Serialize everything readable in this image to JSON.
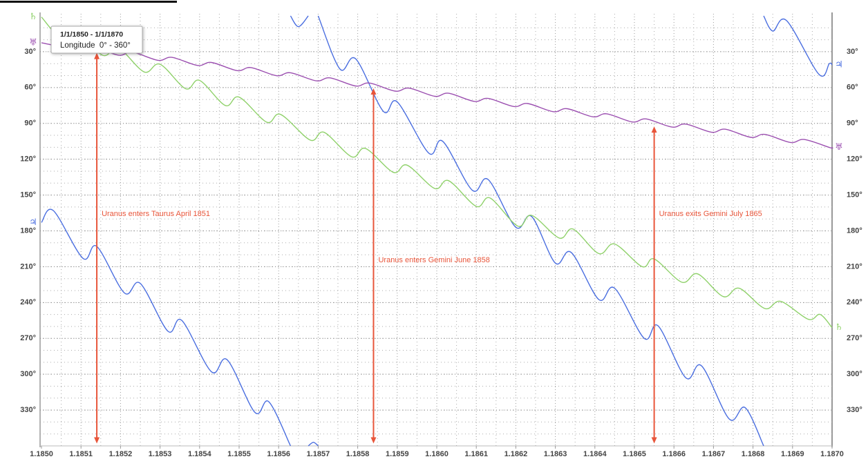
{
  "chart_data": {
    "type": "line",
    "title": "1/1/1850 - 1/1/1870",
    "subtitle": "Longitude  0° - 360°",
    "xlim": [
      1850,
      1870
    ],
    "xticks": [
      {
        "value": 1850,
        "label": "1.1850"
      },
      {
        "value": 1851,
        "label": "1.1851"
      },
      {
        "value": 1852,
        "label": "1.1852"
      },
      {
        "value": 1853,
        "label": "1.1853"
      },
      {
        "value": 1854,
        "label": "1.1854"
      },
      {
        "value": 1855,
        "label": "1.1855"
      },
      {
        "value": 1856,
        "label": "1.1856"
      },
      {
        "value": 1857,
        "label": "1.1857"
      },
      {
        "value": 1858,
        "label": "1.1858"
      },
      {
        "value": 1859,
        "label": "1.1859"
      },
      {
        "value": 1860,
        "label": "1.1860"
      },
      {
        "value": 1861,
        "label": "1.1861"
      },
      {
        "value": 1862,
        "label": "1.1862"
      },
      {
        "value": 1863,
        "label": "1.1863"
      },
      {
        "value": 1864,
        "label": "1.1864"
      },
      {
        "value": 1865,
        "label": "1.1865"
      },
      {
        "value": 1866,
        "label": "1.1866"
      },
      {
        "value": 1867,
        "label": "1.1867"
      },
      {
        "value": 1868,
        "label": "1.1868"
      },
      {
        "value": 1869,
        "label": "1.1869"
      },
      {
        "value": 1870,
        "label": "1.1870"
      }
    ],
    "ylim": [
      0,
      360
    ],
    "y_inverted": true,
    "yticks": [
      {
        "value": 30,
        "label": "30°"
      },
      {
        "value": 60,
        "label": "60°"
      },
      {
        "value": 90,
        "label": "90°"
      },
      {
        "value": 120,
        "label": "120°"
      },
      {
        "value": 150,
        "label": "150°"
      },
      {
        "value": 180,
        "label": "180°"
      },
      {
        "value": 210,
        "label": "210°"
      },
      {
        "value": 240,
        "label": "240°"
      },
      {
        "value": 270,
        "label": "270°"
      },
      {
        "value": 300,
        "label": "300°"
      },
      {
        "value": 330,
        "label": "330°"
      }
    ],
    "grid": true,
    "series": [
      {
        "symbol": "♃",
        "color": "#4a6ee0",
        "x": [
          1850.0,
          1850.3,
          1851.05,
          1851.4,
          1852.1,
          1852.5,
          1853.2,
          1853.55,
          1854.3,
          1854.7,
          1855.4,
          1855.75,
          1856.3,
          null,
          1856.3,
          1856.5,
          1856.75,
          null,
          1856.75,
          1856.88,
          1857.0,
          null,
          1857.0,
          1857.55,
          1857.95,
          1858.65,
          1859.0,
          1859.8,
          1860.15,
          1860.9,
          1861.3,
          1862.0,
          1862.4,
          1863.0,
          1863.4,
          1864.1,
          1864.5,
          1865.25,
          1865.6,
          1866.3,
          1866.7,
          1867.4,
          1867.8,
          1868.27,
          null,
          1868.27,
          1868.5,
          1868.85,
          1869.67,
          1869.93,
          1870.0
        ],
        "values": [
          173,
          163,
          203,
          193,
          232,
          224,
          264,
          255,
          298,
          288,
          332,
          323,
          360,
          null,
          0,
          9,
          0,
          null,
          360,
          357,
          360,
          null,
          0,
          44.5,
          36,
          80,
          72,
          115,
          105,
          146,
          137,
          177,
          168,
          207,
          198,
          237.5,
          228,
          270,
          259.5,
          303,
          293,
          337.5,
          328,
          360,
          null,
          0,
          12.7,
          4,
          49,
          40,
          41
        ]
      },
      {
        "symbol": "♄",
        "color": "#8fd16a",
        "x": [
          1850.0,
          1850.5,
          1850.9,
          1851.55,
          1851.95,
          1852.6,
          1853.0,
          1853.65,
          1854.0,
          1854.65,
          1855.0,
          1855.7,
          1856.05,
          1856.8,
          1857.15,
          1857.85,
          1858.2,
          1858.9,
          1859.25,
          1859.95,
          1860.3,
          1861.0,
          1861.35,
          1862.05,
          1862.4,
          1863.1,
          1863.45,
          1864.1,
          1864.5,
          1865.2,
          1865.5,
          1866.2,
          1866.6,
          1867.25,
          1867.65,
          1868.3,
          1868.7,
          1869.4,
          1869.7,
          1870.0
        ],
        "values": [
          1,
          19,
          14,
          33,
          27,
          47,
          40.5,
          61,
          54,
          75,
          68,
          89,
          82.5,
          104,
          97.5,
          118,
          111,
          131,
          125,
          144.5,
          138,
          159.5,
          152.5,
          176,
          167,
          186,
          178.5,
          199,
          191,
          210,
          203.5,
          223,
          216,
          235,
          228,
          245,
          239,
          254,
          250,
          261
        ]
      },
      {
        "symbol": "♅",
        "color": "#9b4fb0",
        "x": [
          1850.0,
          1850.95,
          1851.3,
          1851.95,
          1852.3,
          1852.95,
          1853.3,
          1853.95,
          1854.3,
          1854.95,
          1855.3,
          1855.95,
          1856.3,
          1856.95,
          1857.3,
          1857.95,
          1858.3,
          1858.95,
          1859.3,
          1859.95,
          1860.3,
          1860.95,
          1861.3,
          1861.95,
          1862.3,
          1862.95,
          1863.3,
          1863.95,
          1864.3,
          1864.95,
          1865.3,
          1865.95,
          1866.3,
          1866.95,
          1867.3,
          1867.95,
          1868.3,
          1868.95,
          1869.3,
          1869.95,
          1870.0
        ],
        "values": [
          22.5,
          28.6,
          26.1,
          32.9,
          30.4,
          37.2,
          34.7,
          41.5,
          39.0,
          45.8,
          43.3,
          50.1,
          47.6,
          54.4,
          51.9,
          58.7,
          56.2,
          63.0,
          60.5,
          67.3,
          64.8,
          71.6,
          69.1,
          75.9,
          73.4,
          80.2,
          77.7,
          84.5,
          82.0,
          88.8,
          86.3,
          93.1,
          90.6,
          97.4,
          94.9,
          101.7,
          99.2,
          106.0,
          103.5,
          110.3,
          110.0
        ]
      }
    ],
    "annotations": [
      {
        "text": "Uranus enters Taurus April 1851",
        "x": 1851.4,
        "y_range": [
          31,
          358
        ],
        "color": "#e8553a"
      },
      {
        "text": "Uranus enters Gemini June 1858",
        "x": 1858.4,
        "y_range": [
          60.7,
          358
        ],
        "color": "#e8553a"
      },
      {
        "text": "Uranus exits Gemini July 1865",
        "x": 1865.5,
        "y_range": [
          92.5,
          358
        ],
        "color": "#e8553a"
      }
    ]
  }
}
